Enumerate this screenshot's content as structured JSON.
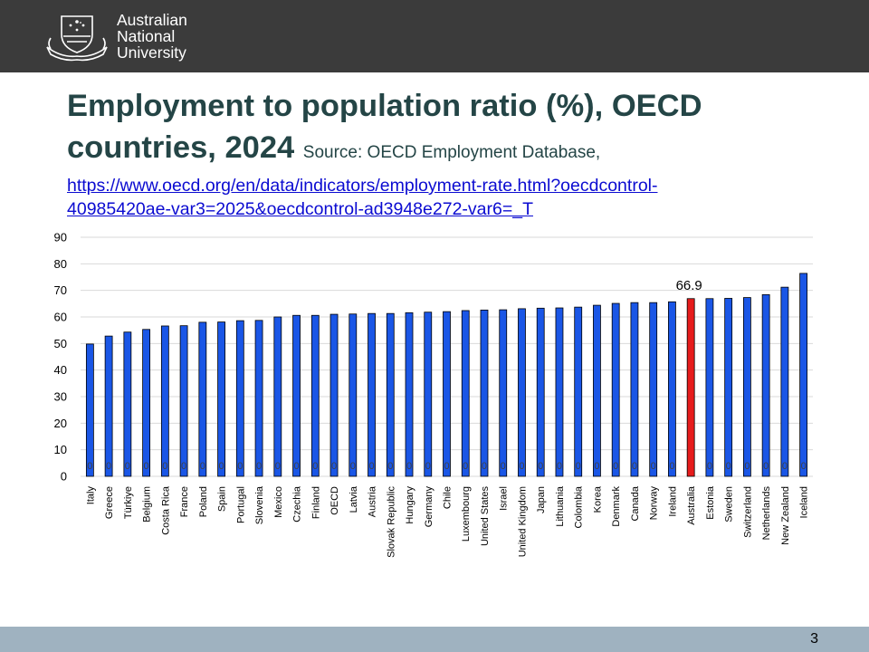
{
  "header": {
    "logo_lines": [
      "Australian",
      "National",
      "University"
    ]
  },
  "slide": {
    "title": "Employment to population ratio (%), OECD countries, 2024",
    "source": "Source: OECD Employment Database,",
    "link_line1": "https://www.oecd.org/en/data/indicators/employment-rate.html?oecdcontrol-",
    "link_line2": "40985420ae-var3=2025&oecdcontrol-ad3948e272-var6=_T",
    "page_number": "3"
  },
  "colors": {
    "bar": "#1a56e6",
    "highlight": "#e61c1c",
    "title": "#244546",
    "link": "#0b0bd1"
  },
  "chart_data": {
    "type": "bar",
    "categories": [
      "Italy",
      "Greece",
      "Türkiye",
      "Belgium",
      "Costa Rica",
      "France",
      "Poland",
      "Spain",
      "Portugal",
      "Slovenia",
      "Mexico",
      "Czechia",
      "Finland",
      "OECD",
      "Latvia",
      "Austria",
      "Slovak Republic",
      "Hungary",
      "Germany",
      "Chile",
      "Luxembourg",
      "United States",
      "Israel",
      "United Kingdom",
      "Japan",
      "Lithuania",
      "Colombia",
      "Korea",
      "Denmark",
      "Canada",
      "Norway",
      "Ireland",
      "Australia",
      "Estonia",
      "Sweden",
      "Switzerland",
      "Netherlands",
      "New Zealand",
      "Iceland"
    ],
    "values": [
      49.8,
      52.8,
      54.3,
      55.3,
      56.6,
      56.7,
      58.0,
      58.1,
      58.6,
      58.7,
      60.0,
      60.6,
      60.6,
      61.0,
      61.1,
      61.3,
      61.3,
      61.6,
      61.8,
      62.0,
      62.4,
      62.6,
      62.7,
      63.1,
      63.3,
      63.4,
      63.7,
      64.4,
      65.1,
      65.4,
      65.4,
      65.7,
      66.9,
      66.9,
      67.0,
      67.3,
      68.4,
      71.2,
      76.4
    ],
    "highlight_category": "Australia",
    "highlight_label": "66.9",
    "zero_labels": "0",
    "yticks": [
      0,
      10,
      20,
      30,
      40,
      50,
      60,
      70,
      80,
      90
    ],
    "ylim": [
      0,
      90
    ],
    "grid": true,
    "legend": "none"
  }
}
